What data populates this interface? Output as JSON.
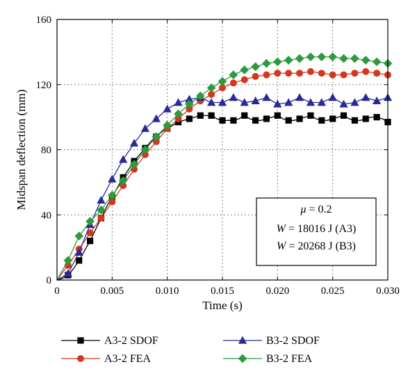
{
  "chart_data": {
    "type": "line",
    "xlabel": "Time (s)",
    "ylabel": "Midspan deflection (mm)",
    "xlim": [
      0,
      0.03
    ],
    "ylim": [
      0,
      160
    ],
    "x_ticks": [
      "0",
      "0.005",
      "0.010",
      "0.015",
      "0.020",
      "0.025",
      "0.030"
    ],
    "y_ticks": [
      "0",
      "40",
      "80",
      "120",
      "160"
    ],
    "grid": "dotted",
    "legend_placement": "bottom",
    "annotation": {
      "mu": "= 0.2",
      "mu_symbol": "μ",
      "w_symbol": "W",
      "w_a3": "= 18016 J (A3)",
      "w_b3": "= 20268 J (B3)"
    },
    "series": [
      {
        "name": "A3-2 SDOF",
        "color": "#000000",
        "marker": "square",
        "x": [
          0,
          0.0005,
          0.001,
          0.0015,
          0.002,
          0.0025,
          0.003,
          0.0035,
          0.004,
          0.0045,
          0.005,
          0.0055,
          0.006,
          0.0065,
          0.007,
          0.0075,
          0.008,
          0.0085,
          0.009,
          0.0095,
          0.01,
          0.0105,
          0.011,
          0.0115,
          0.012,
          0.0125,
          0.013,
          0.0135,
          0.014,
          0.0145,
          0.015,
          0.0155,
          0.016,
          0.0165,
          0.017,
          0.0175,
          0.018,
          0.0185,
          0.019,
          0.0195,
          0.02,
          0.0205,
          0.021,
          0.0215,
          0.022,
          0.0225,
          0.023,
          0.0235,
          0.024,
          0.0245,
          0.025,
          0.0255,
          0.026,
          0.0265,
          0.027,
          0.0275,
          0.028,
          0.0285,
          0.029,
          0.0295,
          0.03
        ],
        "y": [
          0,
          1,
          3,
          7,
          12,
          18,
          24,
          31,
          38,
          45,
          51,
          57,
          63,
          68,
          73,
          77,
          81,
          85,
          88,
          91,
          93,
          95,
          97,
          98,
          99,
          100,
          101,
          101,
          101,
          99,
          98,
          98,
          98,
          99,
          101,
          99,
          98,
          98,
          99,
          100,
          101,
          99,
          98,
          98,
          99,
          100,
          101,
          99,
          98,
          98,
          99,
          100,
          101,
          99,
          98,
          98,
          99,
          100,
          100,
          99,
          97
        ],
        "marker_every": 2
      },
      {
        "name": "A3-2 FEA",
        "color": "#d4371c",
        "marker": "circle",
        "x": [
          0,
          0.001,
          0.002,
          0.003,
          0.004,
          0.005,
          0.006,
          0.007,
          0.008,
          0.009,
          0.01,
          0.011,
          0.012,
          0.013,
          0.014,
          0.015,
          0.016,
          0.017,
          0.018,
          0.019,
          0.02,
          0.021,
          0.022,
          0.023,
          0.024,
          0.025,
          0.026,
          0.027,
          0.028,
          0.029,
          0.03
        ],
        "y": [
          0,
          9,
          19,
          29,
          38,
          48,
          58,
          68,
          77,
          85,
          93,
          99,
          105,
          110,
          114,
          118,
          121,
          123,
          125,
          126,
          127,
          127,
          127,
          128,
          127,
          126,
          126,
          127,
          128,
          127,
          126
        ],
        "marker_every": 1
      },
      {
        "name": "B3-2 SDOF",
        "color": "#2a2a96",
        "marker": "triangle",
        "x": [
          0,
          0.001,
          0.002,
          0.003,
          0.004,
          0.005,
          0.006,
          0.007,
          0.008,
          0.009,
          0.01,
          0.011,
          0.012,
          0.013,
          0.014,
          0.015,
          0.016,
          0.017,
          0.018,
          0.019,
          0.02,
          0.021,
          0.022,
          0.023,
          0.024,
          0.025,
          0.026,
          0.027,
          0.028,
          0.029,
          0.03
        ],
        "y": [
          0,
          4,
          17,
          34,
          49,
          62,
          74,
          84,
          93,
          99,
          105,
          109,
          111,
          112,
          109,
          109,
          112,
          109,
          110,
          112,
          108,
          109,
          112,
          109,
          109,
          112,
          108,
          109,
          112,
          110,
          112
        ],
        "marker_every": 1
      },
      {
        "name": "B3-2 FEA",
        "color": "#2e9a3e",
        "marker": "diamond",
        "x": [
          0,
          0.001,
          0.002,
          0.003,
          0.004,
          0.005,
          0.006,
          0.007,
          0.008,
          0.009,
          0.01,
          0.011,
          0.012,
          0.013,
          0.014,
          0.015,
          0.016,
          0.017,
          0.018,
          0.019,
          0.02,
          0.021,
          0.022,
          0.023,
          0.024,
          0.025,
          0.026,
          0.027,
          0.028,
          0.029,
          0.03
        ],
        "y": [
          0,
          12,
          27,
          36,
          43,
          52,
          61,
          71,
          80,
          88,
          95,
          102,
          108,
          113,
          118,
          122,
          126,
          129,
          131,
          133,
          134,
          135,
          136,
          137,
          137,
          137,
          136,
          136,
          135,
          134,
          133
        ],
        "marker_every": 1
      }
    ]
  }
}
